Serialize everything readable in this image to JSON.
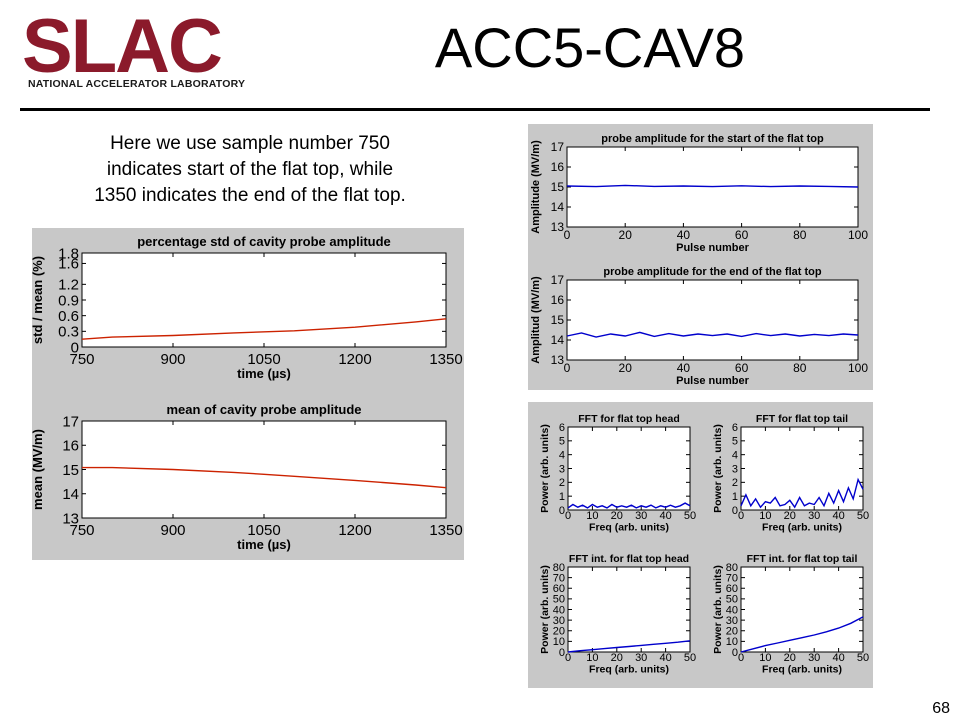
{
  "header": {
    "logo_wordmark": "SLAC",
    "logo_subtitle": "NATIONAL ACCELERATOR LABORATORY",
    "title": "ACC5-CAV8"
  },
  "description": {
    "lines": [
      "Here we use sample number 750",
      "indicates start of the flat top, while",
      "1350 indicates the end of the flat top."
    ]
  },
  "page_number": "68",
  "colors": {
    "trace_red": "#cc2200",
    "trace_blue": "#0000cc",
    "slac_red": "#8b1a2b",
    "panel_bg": "#c8c8c8"
  },
  "chart_data": [
    {
      "id": "std-percent",
      "type": "line",
      "title": "percentage std of cavity probe amplitude",
      "xlabel": "time (µs)",
      "ylabel": "std / mean (%)",
      "xlim": [
        750,
        1350
      ],
      "ylim": [
        0,
        1.8
      ],
      "xticks": [
        750,
        900,
        1050,
        1200,
        1350
      ],
      "yticks": [
        0,
        0.3,
        0.6,
        0.9,
        1.2,
        1.6,
        1.8
      ],
      "ytick_labels": [
        "0",
        "0.3",
        "0.6",
        "0.9",
        "1.2",
        "1.6",
        "1.8"
      ],
      "color": "#cc2200",
      "series": [
        {
          "x": [
            750,
            800,
            900,
            1000,
            1100,
            1200,
            1300,
            1350
          ],
          "y": [
            0.15,
            0.19,
            0.22,
            0.27,
            0.31,
            0.38,
            0.48,
            0.54
          ]
        }
      ]
    },
    {
      "id": "mean-amplitude",
      "type": "line",
      "title": "mean of cavity probe amplitude",
      "xlabel": "time (µs)",
      "ylabel": "mean (MV/m)",
      "xlim": [
        750,
        1350
      ],
      "ylim": [
        13,
        17
      ],
      "xticks": [
        750,
        900,
        1050,
        1200,
        1350
      ],
      "yticks": [
        13,
        14,
        15,
        16,
        17
      ],
      "color": "#cc2200",
      "series": [
        {
          "x": [
            750,
            800,
            900,
            1000,
            1050,
            1100,
            1200,
            1300,
            1350
          ],
          "y": [
            15.08,
            15.08,
            15.0,
            14.88,
            14.8,
            14.72,
            14.55,
            14.36,
            14.25
          ]
        }
      ]
    },
    {
      "id": "probe-start",
      "type": "line",
      "title": "probe amplitude for the start of the flat top",
      "xlabel": "Pulse number",
      "ylabel": "Amplitude (MV/m)",
      "xlim": [
        0,
        100
      ],
      "ylim": [
        13,
        17
      ],
      "xticks": [
        0,
        20,
        40,
        60,
        80,
        100
      ],
      "yticks": [
        13,
        14,
        15,
        16,
        17
      ],
      "color": "#0000cc",
      "series": [
        {
          "x": [
            0,
            10,
            20,
            30,
            40,
            50,
            60,
            70,
            80,
            90,
            100
          ],
          "y": [
            15.05,
            15.02,
            15.08,
            15.03,
            15.05,
            15.02,
            15.06,
            15.02,
            15.05,
            15.03,
            15.0
          ]
        }
      ]
    },
    {
      "id": "probe-end",
      "type": "line",
      "title": "probe amplitude for the end of the flat top",
      "xlabel": "Pulse number",
      "ylabel": "Amplitud (MV/m)",
      "xlim": [
        0,
        100
      ],
      "ylim": [
        13,
        17
      ],
      "xticks": [
        0,
        20,
        40,
        60,
        80,
        100
      ],
      "yticks": [
        13,
        14,
        15,
        16,
        17
      ],
      "color": "#0000cc",
      "series": [
        {
          "x": [
            0,
            5,
            10,
            15,
            20,
            25,
            30,
            35,
            40,
            45,
            50,
            55,
            60,
            65,
            70,
            75,
            80,
            85,
            90,
            95,
            100
          ],
          "y": [
            14.2,
            14.35,
            14.15,
            14.3,
            14.2,
            14.38,
            14.18,
            14.32,
            14.2,
            14.3,
            14.22,
            14.3,
            14.18,
            14.32,
            14.22,
            14.3,
            14.2,
            14.28,
            14.22,
            14.3,
            14.25
          ]
        }
      ]
    },
    {
      "id": "fft-head",
      "type": "line",
      "title": "FFT for flat top head",
      "xlabel": "Freq (arb. units)",
      "ylabel": "Power (arb. units)",
      "xlim": [
        0,
        50
      ],
      "ylim": [
        0,
        6
      ],
      "xticks": [
        0,
        10,
        20,
        30,
        40,
        50
      ],
      "yticks": [
        0,
        1,
        2,
        3,
        4,
        5,
        6
      ],
      "color": "#0000cc",
      "series": [
        {
          "x": [
            0,
            2,
            4,
            6,
            8,
            10,
            12,
            14,
            16,
            18,
            20,
            22,
            24,
            26,
            28,
            30,
            32,
            34,
            36,
            38,
            40,
            42,
            44,
            46,
            48,
            50
          ],
          "y": [
            0.15,
            0.4,
            0.2,
            0.35,
            0.15,
            0.4,
            0.2,
            0.3,
            0.15,
            0.4,
            0.2,
            0.3,
            0.2,
            0.35,
            0.15,
            0.3,
            0.2,
            0.35,
            0.15,
            0.3,
            0.2,
            0.35,
            0.2,
            0.3,
            0.5,
            0.3
          ]
        }
      ]
    },
    {
      "id": "fft-tail",
      "type": "line",
      "title": "FFT for flat top tail",
      "xlabel": "Freq (arb. units)",
      "ylabel": "Power (arb. units)",
      "xlim": [
        0,
        50
      ],
      "ylim": [
        0,
        6
      ],
      "xticks": [
        0,
        10,
        20,
        30,
        40,
        50
      ],
      "yticks": [
        0,
        1,
        2,
        3,
        4,
        5,
        6
      ],
      "color": "#0000cc",
      "series": [
        {
          "x": [
            0,
            2,
            4,
            6,
            8,
            10,
            12,
            14,
            16,
            18,
            20,
            22,
            24,
            26,
            28,
            30,
            32,
            34,
            36,
            38,
            40,
            42,
            44,
            46,
            48,
            50
          ],
          "y": [
            0.3,
            1.1,
            0.3,
            0.8,
            0.2,
            0.6,
            0.5,
            0.9,
            0.3,
            0.4,
            0.7,
            0.2,
            0.9,
            0.3,
            0.5,
            0.4,
            0.9,
            0.3,
            1.2,
            0.5,
            1.4,
            0.6,
            1.6,
            0.8,
            2.2,
            1.5
          ]
        }
      ]
    },
    {
      "id": "fft-int-head",
      "type": "line",
      "title": "FFT int. for flat top head",
      "xlabel": "Freq (arb. units)",
      "ylabel": "Power (arb. units)",
      "xlim": [
        0,
        50
      ],
      "ylim": [
        0,
        80
      ],
      "xticks": [
        0,
        10,
        20,
        30,
        40,
        50
      ],
      "yticks": [
        0,
        10,
        20,
        30,
        40,
        50,
        60,
        70,
        80
      ],
      "color": "#0000cc",
      "series": [
        {
          "x": [
            0,
            5,
            10,
            15,
            20,
            25,
            30,
            35,
            40,
            45,
            50
          ],
          "y": [
            0,
            1.2,
            2.2,
            3.2,
            4.2,
            5.2,
            6.2,
            7.2,
            8.2,
            9.2,
            10.5
          ]
        }
      ]
    },
    {
      "id": "fft-int-tail",
      "type": "line",
      "title": "FFT int. for flat top tail",
      "xlabel": "Freq (arb. units)",
      "ylabel": "Power (arb. units)",
      "xlim": [
        0,
        50
      ],
      "ylim": [
        0,
        80
      ],
      "xticks": [
        0,
        10,
        20,
        30,
        40,
        50
      ],
      "yticks": [
        0,
        10,
        20,
        30,
        40,
        50,
        60,
        70,
        80
      ],
      "color": "#0000cc",
      "series": [
        {
          "x": [
            0,
            5,
            10,
            15,
            20,
            25,
            30,
            35,
            40,
            45,
            50
          ],
          "y": [
            0,
            3,
            6,
            8.5,
            11,
            13.5,
            16,
            19,
            22.5,
            27,
            33
          ]
        }
      ]
    }
  ]
}
